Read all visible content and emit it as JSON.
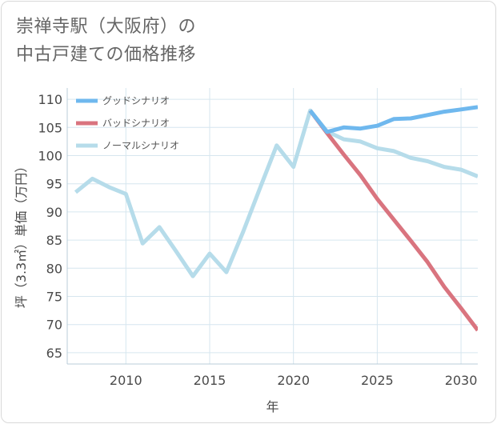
{
  "chart_data": {
    "type": "line",
    "title_line1": "崇禅寺駅（大阪府）の",
    "title_line2": "中古戸建ての価格推移",
    "xlabel": "年",
    "ylabel": "坪（3.3㎡）単価（万円）",
    "xlim": [
      2006.5,
      2031
    ],
    "ylim": [
      63,
      112
    ],
    "xticks": [
      2010,
      2015,
      2020,
      2025,
      2030
    ],
    "yticks": [
      65,
      70,
      75,
      80,
      85,
      90,
      95,
      100,
      105,
      110
    ],
    "series": [
      {
        "name": "グッドシナリオ",
        "color": "#6fb8ee",
        "x": [
          2021,
          2022,
          2023,
          2024,
          2025,
          2026,
          2027,
          2028,
          2029,
          2030,
          2031
        ],
        "values": [
          108.0,
          104.2,
          105.0,
          104.8,
          105.3,
          106.5,
          106.6,
          107.2,
          107.8,
          108.2,
          108.6
        ]
      },
      {
        "name": "バッドシナリオ",
        "color": "#d9747f",
        "x": [
          2021,
          2022,
          2023,
          2024,
          2025,
          2026,
          2027,
          2028,
          2029,
          2030,
          2031
        ],
        "values": [
          108.0,
          104.0,
          100.2,
          96.5,
          92.3,
          88.6,
          84.9,
          81.1,
          76.7,
          72.9,
          69.0
        ]
      },
      {
        "name": "ノーマルシナリオ",
        "color": "#b6dcea",
        "x": [
          2007,
          2008,
          2009,
          2010,
          2011,
          2012,
          2013,
          2014,
          2015,
          2016,
          2017,
          2018,
          2019,
          2020,
          2021,
          2022,
          2023,
          2024,
          2025,
          2026,
          2027,
          2028,
          2029,
          2030,
          2031
        ],
        "values": [
          93.5,
          95.9,
          94.4,
          93.2,
          84.4,
          87.3,
          83.0,
          78.6,
          82.6,
          79.3,
          86.5,
          94.2,
          101.8,
          98.0,
          108.0,
          104.3,
          102.9,
          102.5,
          101.3,
          100.8,
          99.6,
          99.0,
          98.0,
          97.5,
          96.3
        ]
      }
    ],
    "legend_position": "top-left",
    "grid": true
  }
}
